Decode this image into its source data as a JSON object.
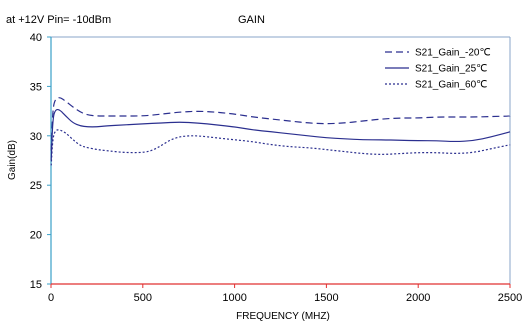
{
  "header": {
    "condition": "at +12V Pin= -10dBm",
    "title": "GAIN"
  },
  "chart_data": {
    "type": "line",
    "title": "GAIN",
    "subtitle": "at +12V Pin= -10dBm",
    "xlabel": "FREQUENCY (MHZ)",
    "ylabel": "Gain(dB)",
    "xlim": [
      0,
      2500
    ],
    "ylim": [
      15,
      40
    ],
    "xticks": [
      "0",
      "500",
      "1000",
      "1500",
      "2000",
      "2500"
    ],
    "yticks": [
      "15",
      "20",
      "25",
      "30",
      "35",
      "40"
    ],
    "grid": false,
    "legend_position": "top-right",
    "series": [
      {
        "name": "S21_Gain_-20℃",
        "style": "dashed",
        "color": "#2b2f8f",
        "x": [
          1,
          10,
          25,
          50,
          80,
          120,
          160,
          200,
          250,
          300,
          400,
          500,
          600,
          700,
          800,
          900,
          1000,
          1100,
          1200,
          1300,
          1400,
          1500,
          1600,
          1700,
          1800,
          1900,
          2000,
          2100,
          2200,
          2300,
          2400,
          2500
        ],
        "y": [
          28.5,
          32.8,
          33.8,
          33.9,
          33.5,
          32.9,
          32.4,
          32.1,
          32.0,
          32.0,
          32.0,
          32.0,
          32.2,
          32.4,
          32.5,
          32.4,
          32.2,
          31.9,
          31.7,
          31.5,
          31.3,
          31.2,
          31.3,
          31.5,
          31.7,
          31.8,
          31.8,
          31.9,
          31.9,
          31.9,
          31.95,
          32.0
        ]
      },
      {
        "name": "S21_Gain_25℃",
        "style": "solid",
        "color": "#2b2f8f",
        "x": [
          1,
          10,
          25,
          50,
          80,
          120,
          160,
          200,
          250,
          300,
          400,
          500,
          600,
          700,
          800,
          900,
          1000,
          1100,
          1200,
          1300,
          1400,
          1500,
          1600,
          1700,
          1800,
          1900,
          2000,
          2100,
          2200,
          2300,
          2400,
          2500
        ],
        "y": [
          27.5,
          31.8,
          32.7,
          32.6,
          32.0,
          31.3,
          31.0,
          30.9,
          30.9,
          31.0,
          31.1,
          31.2,
          31.3,
          31.4,
          31.3,
          31.1,
          30.9,
          30.6,
          30.4,
          30.2,
          30.0,
          29.8,
          29.7,
          29.6,
          29.6,
          29.55,
          29.5,
          29.5,
          29.4,
          29.5,
          29.9,
          30.4
        ]
      },
      {
        "name": "S21_Gain_60℃",
        "style": "dotted",
        "color": "#2b2f8f",
        "x": [
          1,
          10,
          25,
          50,
          80,
          120,
          160,
          200,
          250,
          300,
          400,
          500,
          550,
          600,
          650,
          700,
          750,
          800,
          900,
          1000,
          1100,
          1200,
          1300,
          1400,
          1500,
          1600,
          1700,
          1800,
          1900,
          2000,
          2100,
          2200,
          2300,
          2400,
          2500
        ],
        "y": [
          27.0,
          29.8,
          30.6,
          30.6,
          30.3,
          29.6,
          29.0,
          28.8,
          28.6,
          28.5,
          28.3,
          28.3,
          28.5,
          29.0,
          29.6,
          29.9,
          30.0,
          30.0,
          29.8,
          29.6,
          29.4,
          29.1,
          28.9,
          28.8,
          28.6,
          28.4,
          28.2,
          28.1,
          28.2,
          28.3,
          28.3,
          28.2,
          28.3,
          28.7,
          29.1
        ]
      }
    ]
  }
}
